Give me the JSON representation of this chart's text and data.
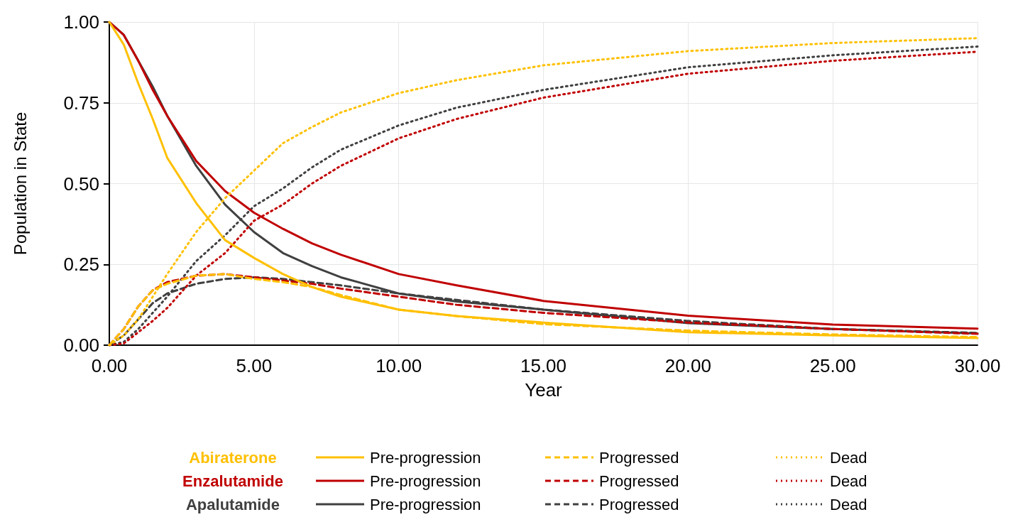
{
  "chart_data": {
    "type": "line",
    "xlabel": "Year",
    "ylabel": "Population in State",
    "x": [
      0,
      0.5,
      1,
      1.5,
      2,
      3,
      4,
      5,
      6,
      7,
      8,
      10,
      12,
      15,
      20,
      25,
      30
    ],
    "series": [
      {
        "name": "Pre-progression",
        "color": "#ffc000",
        "line_style": "solid",
        "values": [
          1,
          0.93,
          0.81,
          0.7,
          0.58,
          0.44,
          0.325,
          0.27,
          0.22,
          0.18,
          0.15,
          0.11,
          0.09,
          0.07,
          0.04,
          0.03,
          0.022
        ]
      },
      {
        "name": "Progressed",
        "color": "#ffc000",
        "line_style": "dashed",
        "values": [
          0,
          0.05,
          0.12,
          0.17,
          0.19,
          0.215,
          0.22,
          0.205,
          0.195,
          0.18,
          0.155,
          0.11,
          0.09,
          0.065,
          0.045,
          0.033,
          0.025
        ]
      },
      {
        "name": "Dead",
        "color": "#ffc000",
        "line_style": "dotted",
        "values": [
          0,
          0.03,
          0.08,
          0.15,
          0.22,
          0.35,
          0.455,
          0.54,
          0.625,
          0.675,
          0.72,
          0.78,
          0.82,
          0.866,
          0.91,
          0.935,
          0.95
        ]
      },
      {
        "name": "Pre-progression",
        "color": "#c00000",
        "line_style": "solid",
        "values": [
          1,
          0.96,
          0.88,
          0.79,
          0.71,
          0.57,
          0.477,
          0.41,
          0.36,
          0.315,
          0.28,
          0.22,
          0.185,
          0.137,
          0.091,
          0.064,
          0.051
        ]
      },
      {
        "name": "Progressed",
        "color": "#c00000",
        "line_style": "dashed",
        "values": [
          0,
          0.05,
          0.12,
          0.17,
          0.195,
          0.215,
          0.22,
          0.21,
          0.2,
          0.19,
          0.175,
          0.15,
          0.125,
          0.1,
          0.07,
          0.05,
          0.035
        ]
      },
      {
        "name": "Dead",
        "color": "#c00000",
        "line_style": "dotted",
        "values": [
          0,
          0.005,
          0.04,
          0.075,
          0.115,
          0.215,
          0.285,
          0.385,
          0.435,
          0.5,
          0.555,
          0.64,
          0.7,
          0.766,
          0.84,
          0.88,
          0.908
        ]
      },
      {
        "name": "Pre-progression",
        "color": "#404040",
        "line_style": "solid",
        "values": [
          1,
          0.96,
          0.88,
          0.8,
          0.71,
          0.555,
          0.435,
          0.35,
          0.285,
          0.245,
          0.21,
          0.16,
          0.135,
          0.11,
          0.068,
          0.05,
          0.036
        ]
      },
      {
        "name": "Progressed",
        "color": "#404040",
        "line_style": "dashed",
        "values": [
          0,
          0.03,
          0.08,
          0.13,
          0.16,
          0.19,
          0.205,
          0.21,
          0.205,
          0.195,
          0.185,
          0.16,
          0.14,
          0.11,
          0.075,
          0.05,
          0.038
        ]
      },
      {
        "name": "Dead",
        "color": "#404040",
        "line_style": "dotted",
        "values": [
          0,
          0.01,
          0.05,
          0.1,
          0.15,
          0.26,
          0.34,
          0.43,
          0.485,
          0.55,
          0.605,
          0.68,
          0.735,
          0.79,
          0.86,
          0.897,
          0.924
        ]
      }
    ],
    "annotations": [
      "Abiraterone",
      "Enzalutamide",
      "Apalutamide"
    ],
    "xlim": [
      0,
      30
    ],
    "xticks": [
      {
        "value": 0,
        "label": "0.00"
      },
      {
        "value": 5,
        "label": "5.00"
      },
      {
        "value": 10,
        "label": "10.00"
      },
      {
        "value": 15,
        "label": "15.00"
      },
      {
        "value": 20,
        "label": "20.00"
      },
      {
        "value": 25,
        "label": "25.00"
      },
      {
        "value": 30,
        "label": "30.00"
      }
    ],
    "ylim": [
      0,
      1
    ],
    "yticks": [
      {
        "value": 0,
        "label": "0.00"
      },
      {
        "value": 0.25,
        "label": "0.25"
      },
      {
        "value": 0.5,
        "label": "0.50"
      },
      {
        "value": 0.75,
        "label": "0.75"
      },
      {
        "value": 1,
        "label": "1.00"
      }
    ],
    "grid": true,
    "legend": "bottom",
    "marker": "none"
  }
}
